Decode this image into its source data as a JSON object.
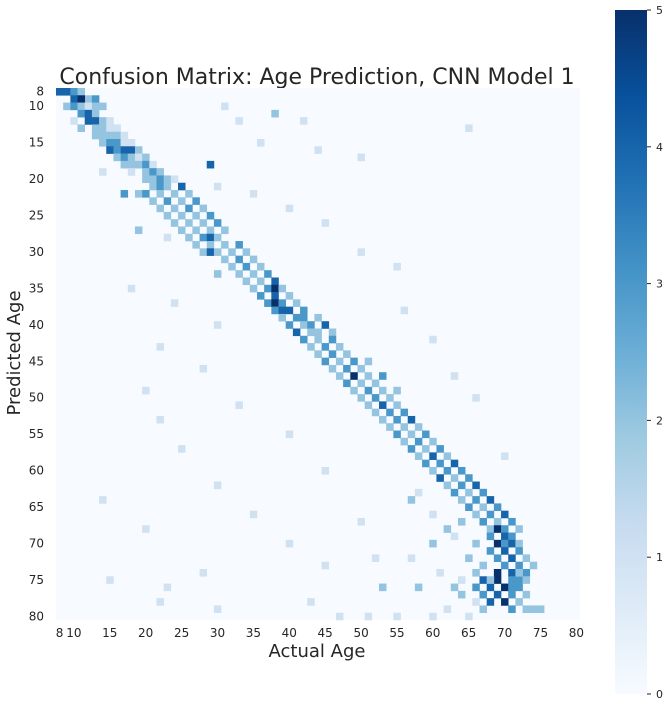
{
  "chart_data": {
    "type": "heatmap",
    "title": "Confusion Matrix: Age Prediction, CNN Model 1",
    "xlabel": "Actual Age",
    "ylabel": "Predicted Age",
    "x_range": [
      8,
      80
    ],
    "y_range": [
      8,
      80
    ],
    "x_ticks": [
      "8",
      "10",
      "15",
      "20",
      "25",
      "30",
      "35",
      "40",
      "45",
      "50",
      "55",
      "60",
      "65",
      "70",
      "75",
      "80"
    ],
    "y_ticks": [
      "8",
      "10",
      "15",
      "20",
      "25",
      "30",
      "35",
      "40",
      "45",
      "50",
      "55",
      "60",
      "65",
      "70",
      "75",
      "80"
    ],
    "colorbar": {
      "min": 0,
      "max": 5,
      "ticks": [
        "0",
        "1",
        "2",
        "3",
        "4",
        "5"
      ]
    },
    "colormap": [
      "#f7fbff",
      "#deebf7",
      "#c6dbef",
      "#9ecae1",
      "#6baed6",
      "#4292c6",
      "#2171b5",
      "#08519c",
      "#08306b"
    ],
    "note_cells": "cells are [actual_age, predicted_age, count]; unlisted cells are 0",
    "cells": [
      [
        8,
        8,
        4
      ],
      [
        9,
        8,
        4
      ],
      [
        10,
        8,
        3
      ],
      [
        11,
        8,
        2
      ],
      [
        12,
        9,
        2
      ],
      [
        10,
        9,
        4
      ],
      [
        11,
        9,
        5
      ],
      [
        13,
        9,
        3
      ],
      [
        9,
        10,
        2
      ],
      [
        10,
        10,
        3
      ],
      [
        11,
        10,
        2
      ],
      [
        12,
        10,
        1
      ],
      [
        13,
        10,
        2
      ],
      [
        14,
        10,
        2
      ],
      [
        11,
        11,
        3
      ],
      [
        12,
        11,
        4
      ],
      [
        13,
        11,
        2
      ],
      [
        10,
        12,
        1
      ],
      [
        12,
        12,
        4
      ],
      [
        13,
        12,
        4
      ],
      [
        14,
        12,
        2
      ],
      [
        15,
        12,
        1
      ],
      [
        11,
        13,
        2
      ],
      [
        13,
        13,
        2
      ],
      [
        14,
        13,
        2
      ],
      [
        15,
        13,
        1
      ],
      [
        16,
        13,
        1
      ],
      [
        13,
        14,
        2
      ],
      [
        14,
        14,
        2
      ],
      [
        15,
        14,
        2
      ],
      [
        16,
        14,
        2
      ],
      [
        17,
        14,
        1
      ],
      [
        14,
        15,
        2
      ],
      [
        15,
        15,
        3
      ],
      [
        16,
        15,
        3
      ],
      [
        17,
        15,
        1
      ],
      [
        18,
        15,
        1
      ],
      [
        15,
        16,
        4
      ],
      [
        16,
        16,
        3
      ],
      [
        17,
        16,
        4
      ],
      [
        18,
        16,
        4
      ],
      [
        19,
        16,
        2
      ],
      [
        16,
        17,
        2
      ],
      [
        17,
        17,
        3
      ],
      [
        18,
        17,
        2
      ],
      [
        19,
        17,
        1
      ],
      [
        20,
        17,
        2
      ],
      [
        17,
        18,
        2
      ],
      [
        18,
        18,
        2
      ],
      [
        19,
        18,
        2
      ],
      [
        20,
        18,
        3
      ],
      [
        21,
        18,
        1
      ],
      [
        18,
        19,
        1
      ],
      [
        20,
        19,
        2
      ],
      [
        21,
        19,
        3
      ],
      [
        22,
        19,
        2
      ],
      [
        29,
        18,
        4
      ],
      [
        20,
        20,
        2
      ],
      [
        21,
        20,
        2
      ],
      [
        22,
        20,
        3
      ],
      [
        23,
        20,
        2
      ],
      [
        24,
        20,
        1
      ],
      [
        21,
        21,
        2
      ],
      [
        22,
        21,
        3
      ],
      [
        23,
        21,
        2
      ],
      [
        25,
        21,
        4
      ],
      [
        17,
        22,
        3
      ],
      [
        19,
        22,
        2
      ],
      [
        20,
        22,
        3
      ],
      [
        22,
        22,
        2
      ],
      [
        24,
        22,
        2
      ],
      [
        26,
        22,
        2
      ],
      [
        21,
        23,
        2
      ],
      [
        23,
        23,
        3
      ],
      [
        25,
        23,
        2
      ],
      [
        27,
        23,
        3
      ],
      [
        22,
        24,
        2
      ],
      [
        24,
        24,
        2
      ],
      [
        26,
        24,
        3
      ],
      [
        28,
        24,
        2
      ],
      [
        23,
        25,
        2
      ],
      [
        25,
        25,
        2
      ],
      [
        27,
        25,
        2
      ],
      [
        29,
        25,
        3
      ],
      [
        24,
        26,
        2
      ],
      [
        26,
        26,
        2
      ],
      [
        28,
        26,
        2
      ],
      [
        30,
        26,
        3
      ],
      [
        19,
        27,
        2
      ],
      [
        25,
        27,
        2
      ],
      [
        27,
        27,
        2
      ],
      [
        29,
        27,
        2
      ],
      [
        31,
        27,
        2
      ],
      [
        26,
        28,
        2
      ],
      [
        28,
        28,
        3
      ],
      [
        29,
        28,
        4
      ],
      [
        30,
        28,
        2
      ],
      [
        27,
        29,
        2
      ],
      [
        29,
        29,
        2
      ],
      [
        31,
        29,
        2
      ],
      [
        33,
        29,
        3
      ],
      [
        28,
        30,
        2
      ],
      [
        29,
        30,
        4
      ],
      [
        30,
        30,
        2
      ],
      [
        32,
        30,
        2
      ],
      [
        34,
        30,
        2
      ],
      [
        31,
        31,
        2
      ],
      [
        33,
        31,
        3
      ],
      [
        35,
        31,
        2
      ],
      [
        32,
        32,
        2
      ],
      [
        34,
        32,
        3
      ],
      [
        36,
        32,
        2
      ],
      [
        30,
        33,
        2
      ],
      [
        33,
        33,
        2
      ],
      [
        35,
        33,
        2
      ],
      [
        37,
        33,
        3
      ],
      [
        34,
        34,
        2
      ],
      [
        36,
        34,
        2
      ],
      [
        38,
        34,
        4
      ],
      [
        35,
        35,
        2
      ],
      [
        37,
        35,
        3
      ],
      [
        38,
        35,
        5
      ],
      [
        39,
        35,
        2
      ],
      [
        36,
        36,
        3
      ],
      [
        38,
        36,
        4
      ],
      [
        40,
        36,
        2
      ],
      [
        37,
        37,
        3
      ],
      [
        38,
        37,
        5
      ],
      [
        39,
        37,
        3
      ],
      [
        41,
        37,
        2
      ],
      [
        38,
        38,
        3
      ],
      [
        39,
        38,
        4
      ],
      [
        40,
        38,
        4
      ],
      [
        42,
        38,
        3
      ],
      [
        39,
        39,
        2
      ],
      [
        41,
        39,
        3
      ],
      [
        42,
        39,
        3
      ],
      [
        44,
        39,
        2
      ],
      [
        40,
        40,
        3
      ],
      [
        42,
        40,
        2
      ],
      [
        43,
        40,
        3
      ],
      [
        45,
        40,
        4
      ],
      [
        41,
        41,
        4
      ],
      [
        43,
        41,
        2
      ],
      [
        44,
        41,
        2
      ],
      [
        46,
        41,
        2
      ],
      [
        42,
        42,
        3
      ],
      [
        44,
        42,
        2
      ],
      [
        46,
        42,
        3
      ],
      [
        43,
        43,
        2
      ],
      [
        45,
        43,
        3
      ],
      [
        47,
        43,
        2
      ],
      [
        44,
        44,
        2
      ],
      [
        46,
        44,
        3
      ],
      [
        48,
        44,
        2
      ],
      [
        45,
        45,
        3
      ],
      [
        47,
        45,
        2
      ],
      [
        49,
        45,
        3
      ],
      [
        51,
        45,
        2
      ],
      [
        46,
        46,
        2
      ],
      [
        48,
        46,
        3
      ],
      [
        50,
        46,
        2
      ],
      [
        47,
        47,
        2
      ],
      [
        49,
        47,
        5
      ],
      [
        51,
        47,
        2
      ],
      [
        53,
        47,
        3
      ],
      [
        48,
        48,
        3
      ],
      [
        50,
        48,
        2
      ],
      [
        52,
        48,
        2
      ],
      [
        49,
        49,
        2
      ],
      [
        51,
        49,
        3
      ],
      [
        53,
        49,
        2
      ],
      [
        55,
        49,
        2
      ],
      [
        50,
        50,
        2
      ],
      [
        52,
        50,
        3
      ],
      [
        54,
        50,
        2
      ],
      [
        51,
        51,
        2
      ],
      [
        53,
        51,
        4
      ],
      [
        55,
        51,
        2
      ],
      [
        52,
        52,
        2
      ],
      [
        54,
        52,
        3
      ],
      [
        56,
        52,
        3
      ],
      [
        53,
        53,
        2
      ],
      [
        55,
        53,
        3
      ],
      [
        57,
        53,
        4
      ],
      [
        54,
        54,
        2
      ],
      [
        56,
        54,
        2
      ],
      [
        58,
        54,
        2
      ],
      [
        55,
        55,
        3
      ],
      [
        57,
        55,
        2
      ],
      [
        59,
        55,
        3
      ],
      [
        56,
        56,
        2
      ],
      [
        58,
        56,
        3
      ],
      [
        60,
        56,
        2
      ],
      [
        57,
        57,
        3
      ],
      [
        59,
        57,
        2
      ],
      [
        61,
        57,
        3
      ],
      [
        58,
        58,
        2
      ],
      [
        60,
        58,
        4
      ],
      [
        62,
        58,
        2
      ],
      [
        59,
        59,
        3
      ],
      [
        61,
        59,
        3
      ],
      [
        63,
        59,
        4
      ],
      [
        60,
        60,
        2
      ],
      [
        62,
        60,
        3
      ],
      [
        64,
        60,
        3
      ],
      [
        61,
        61,
        4
      ],
      [
        63,
        61,
        2
      ],
      [
        65,
        61,
        3
      ],
      [
        62,
        62,
        2
      ],
      [
        64,
        62,
        3
      ],
      [
        66,
        62,
        4
      ],
      [
        63,
        63,
        3
      ],
      [
        65,
        63,
        2
      ],
      [
        67,
        63,
        3
      ],
      [
        64,
        64,
        2
      ],
      [
        66,
        64,
        3
      ],
      [
        68,
        64,
        4
      ],
      [
        65,
        65,
        3
      ],
      [
        67,
        65,
        2
      ],
      [
        69,
        65,
        3
      ],
      [
        66,
        66,
        2
      ],
      [
        68,
        66,
        3
      ],
      [
        70,
        66,
        4
      ],
      [
        67,
        67,
        3
      ],
      [
        69,
        67,
        2
      ],
      [
        71,
        67,
        3
      ],
      [
        68,
        68,
        2
      ],
      [
        69,
        68,
        5
      ],
      [
        70,
        68,
        3
      ],
      [
        72,
        68,
        2
      ],
      [
        68,
        69,
        3
      ],
      [
        70,
        69,
        4
      ],
      [
        71,
        69,
        3
      ],
      [
        69,
        70,
        5
      ],
      [
        70,
        70,
        3
      ],
      [
        71,
        70,
        4
      ],
      [
        72,
        70,
        2
      ],
      [
        68,
        71,
        3
      ],
      [
        70,
        71,
        4
      ],
      [
        72,
        71,
        3
      ],
      [
        69,
        72,
        3
      ],
      [
        71,
        72,
        4
      ],
      [
        73,
        72,
        2
      ],
      [
        70,
        73,
        3
      ],
      [
        72,
        73,
        3
      ],
      [
        74,
        73,
        2
      ],
      [
        69,
        74,
        5
      ],
      [
        71,
        74,
        4
      ],
      [
        73,
        74,
        3
      ],
      [
        67,
        75,
        4
      ],
      [
        69,
        75,
        5
      ],
      [
        72,
        75,
        3
      ],
      [
        66,
        76,
        3
      ],
      [
        68,
        76,
        4
      ],
      [
        70,
        76,
        5
      ],
      [
        67,
        77,
        3
      ],
      [
        69,
        77,
        4
      ],
      [
        71,
        77,
        3
      ],
      [
        68,
        78,
        4
      ],
      [
        70,
        78,
        5
      ],
      [
        72,
        78,
        2
      ],
      [
        74,
        79,
        2
      ],
      [
        73,
        79,
        2
      ],
      [
        75,
        79,
        2
      ],
      [
        31,
        10,
        1
      ],
      [
        33,
        12,
        1
      ],
      [
        38,
        11,
        2
      ],
      [
        42,
        12,
        1
      ],
      [
        65,
        13,
        1
      ],
      [
        36,
        15,
        1
      ],
      [
        44,
        16,
        1
      ],
      [
        50,
        17,
        1
      ],
      [
        14,
        19,
        1
      ],
      [
        30,
        21,
        1
      ],
      [
        35,
        22,
        1
      ],
      [
        40,
        24,
        1
      ],
      [
        45,
        26,
        1
      ],
      [
        23,
        28,
        1
      ],
      [
        50,
        30,
        1
      ],
      [
        55,
        32,
        1
      ],
      [
        18,
        35,
        1
      ],
      [
        24,
        37,
        1
      ],
      [
        56,
        38,
        1
      ],
      [
        30,
        40,
        1
      ],
      [
        60,
        42,
        1
      ],
      [
        22,
        43,
        1
      ],
      [
        28,
        46,
        1
      ],
      [
        63,
        47,
        1
      ],
      [
        20,
        49,
        1
      ],
      [
        33,
        51,
        1
      ],
      [
        66,
        50,
        1
      ],
      [
        22,
        53,
        1
      ],
      [
        40,
        55,
        1
      ],
      [
        25,
        57,
        1
      ],
      [
        70,
        58,
        1
      ],
      [
        14,
        64,
        1
      ],
      [
        30,
        62,
        1
      ],
      [
        45,
        60,
        1
      ],
      [
        20,
        68,
        1
      ],
      [
        35,
        66,
        1
      ],
      [
        50,
        67,
        1
      ],
      [
        40,
        70,
        1
      ],
      [
        52,
        72,
        1
      ],
      [
        15,
        75,
        1
      ],
      [
        23,
        76,
        1
      ],
      [
        28,
        74,
        1
      ],
      [
        45,
        73,
        1
      ],
      [
        53,
        76,
        2
      ],
      [
        22,
        78,
        1
      ],
      [
        30,
        79,
        1
      ],
      [
        43,
        78,
        1
      ],
      [
        51,
        80,
        1
      ],
      [
        55,
        80,
        1
      ],
      [
        60,
        80,
        1
      ],
      [
        47,
        80,
        1
      ],
      [
        62,
        79,
        1
      ],
      [
        64,
        77,
        2
      ],
      [
        65,
        80,
        1
      ],
      [
        58,
        76,
        2
      ],
      [
        61,
        74,
        1
      ],
      [
        57,
        72,
        1
      ],
      [
        60,
        70,
        2
      ],
      [
        63,
        69,
        1
      ],
      [
        60,
        66,
        1
      ],
      [
        57,
        64,
        2
      ],
      [
        58,
        63,
        1
      ],
      [
        64,
        67,
        2
      ],
      [
        62,
        68,
        2
      ],
      [
        66,
        70,
        2
      ],
      [
        65,
        72,
        2
      ],
      [
        67,
        73,
        2
      ],
      [
        66,
        74,
        2
      ],
      [
        68,
        75,
        2
      ],
      [
        64,
        75,
        1
      ],
      [
        63,
        76,
        2
      ],
      [
        66,
        78,
        1
      ],
      [
        67,
        79,
        2
      ],
      [
        71,
        79,
        3
      ],
      [
        71,
        76,
        3
      ],
      [
        72,
        76,
        3
      ],
      [
        73,
        77,
        2
      ],
      [
        72,
        74,
        2
      ],
      [
        73,
        75,
        2
      ],
      [
        71,
        75,
        3
      ]
    ]
  }
}
